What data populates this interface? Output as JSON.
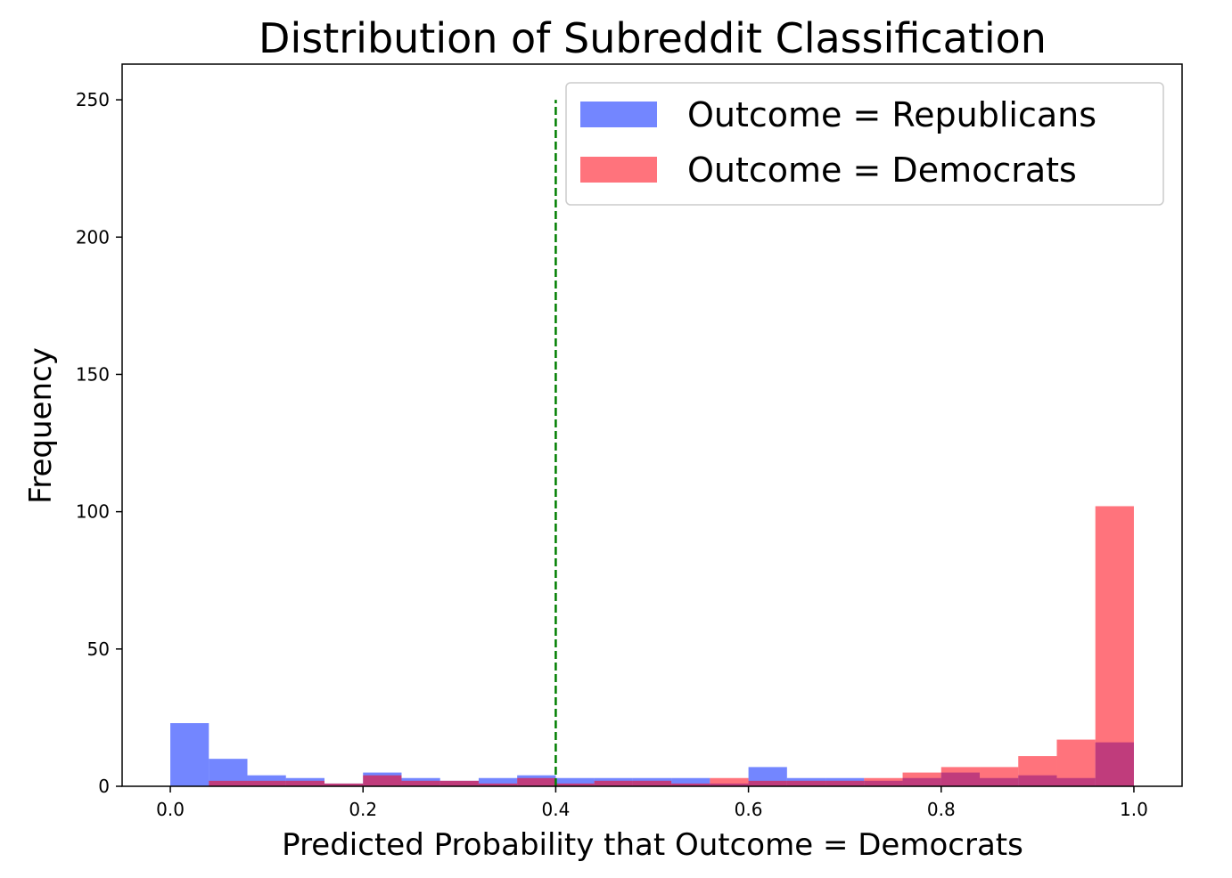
{
  "chart_data": {
    "type": "bar",
    "subtype": "overlapping-histogram",
    "title": "Distribution of Subreddit Classification",
    "xlabel": "Predicted Probability that Outcome = Democrats",
    "ylabel": "Frequency",
    "xlim": [
      -0.05,
      1.05
    ],
    "ylim": [
      0,
      263
    ],
    "xticks": [
      "0.0",
      "0.2",
      "0.4",
      "0.6",
      "0.8",
      "1.0"
    ],
    "yticks": [
      "0",
      "50",
      "100",
      "150",
      "200",
      "250"
    ],
    "grid": false,
    "legend_position": "top-right",
    "threshold": {
      "x": 0.4,
      "y_range": [
        0,
        250
      ],
      "color": "#007f00",
      "style": "dashed"
    },
    "series": [
      {
        "name": "Outcome = Republicans",
        "color": "#0022ff",
        "bin_start": 0.0,
        "bin_width": 0.04,
        "values": [
          23,
          10,
          4,
          3,
          1,
          5,
          3,
          2,
          3,
          4,
          3,
          3,
          3,
          3,
          1,
          7,
          3,
          3,
          2,
          3,
          5,
          3,
          4,
          3,
          16
        ]
      },
      {
        "name": "Outcome = Democrats",
        "color": "#ff0011",
        "bin_start": 0.04,
        "bin_width": 0.04,
        "values": [
          2,
          2,
          2,
          1,
          4,
          2,
          2,
          1,
          3,
          1,
          2,
          2,
          1,
          3,
          2,
          2,
          2,
          3,
          5,
          7,
          7,
          11,
          17,
          102
        ]
      }
    ]
  }
}
